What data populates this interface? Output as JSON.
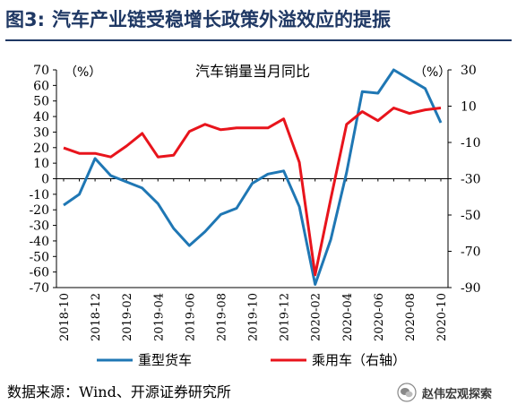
{
  "figure": {
    "number": "图3:",
    "title": "汽车产业链受稳增长政策外溢效应的提振"
  },
  "source_note": "数据来源：Wind、开源证券研究所",
  "watermark": "赵伟宏观探索",
  "colors": {
    "title": "#1f3864",
    "truck_series": "#1f77b4",
    "car_series": "#e8141c",
    "axis": "#000000"
  },
  "chart_data": {
    "type": "line",
    "title": "汽车销量当月同比",
    "left_axis_unit": "（%）",
    "right_axis_unit": "（%）",
    "ylim_left": [
      -70,
      70
    ],
    "yticks_left": [
      -70,
      -60,
      -50,
      -40,
      -30,
      -20,
      -10,
      0,
      10,
      20,
      30,
      40,
      50,
      60,
      70
    ],
    "ylim_right": [
      -90,
      30
    ],
    "yticks_right": [
      -90,
      -70,
      -50,
      -30,
      -10,
      10,
      30
    ],
    "x_tick_labels": [
      "2018-10",
      "2018-12",
      "2019-02",
      "2019-04",
      "2019-06",
      "2019-08",
      "2019-10",
      "2019-12",
      "2020-02",
      "2020-04",
      "2020-06",
      "2020-08",
      "2020-10"
    ],
    "x": [
      "2018-10",
      "2018-11",
      "2018-12",
      "2019-01",
      "2019-02",
      "2019-03",
      "2019-04",
      "2019-05",
      "2019-06",
      "2019-07",
      "2019-08",
      "2019-09",
      "2019-10",
      "2019-11",
      "2019-12",
      "2020-01",
      "2020-02",
      "2020-03",
      "2020-04",
      "2020-05",
      "2020-06",
      "2020-07",
      "2020-08",
      "2020-09",
      "2020-10"
    ],
    "grid": false,
    "legend_position": "bottom",
    "series": [
      {
        "name": "重型货车",
        "axis": "left",
        "values": [
          -17,
          -10,
          13,
          2,
          -2,
          -6,
          -16,
          -32,
          -43,
          -34,
          -23,
          -19,
          -3,
          3,
          5,
          -18,
          -68,
          -39,
          4,
          56,
          55,
          70,
          64,
          58,
          36
        ]
      },
      {
        "name": "乘用车（右轴）",
        "axis": "right",
        "values": [
          -13,
          -16,
          -16,
          -18,
          -12,
          -5,
          -18,
          -17,
          -4,
          0,
          -3,
          -2,
          -2,
          -2,
          3,
          -21,
          -83,
          -41,
          0,
          7,
          2,
          9,
          6,
          8,
          9
        ]
      }
    ]
  }
}
